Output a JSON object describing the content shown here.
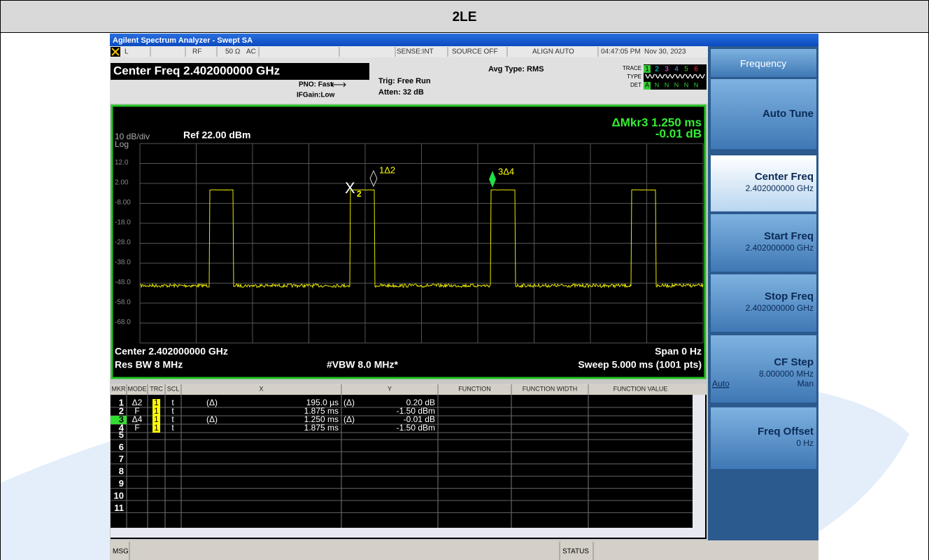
{
  "header": {
    "title": "2LE"
  },
  "window": {
    "title": "Agilent Spectrum Analyzer - Swept SA"
  },
  "status_row": {
    "mode": "L",
    "input": "RF",
    "impedance": "50 Ω",
    "coupling": "AC",
    "sense": "SENSE:INT",
    "source": "SOURCE OFF",
    "align": "ALIGN AUTO",
    "time": "04:47:05 PM",
    "date": "Nov 30, 2023"
  },
  "settings": {
    "center_freq": "Center Freq 2.402000000 GHz",
    "pno": "PNO: Fast",
    "ifgain": "IFGain:Low",
    "trig": "Trig: Free Run",
    "atten": "Atten: 32 dB",
    "avg_type": "Avg Type: RMS",
    "trace_label": "TRACE",
    "trace_nums": [
      "1",
      "2",
      "3",
      "4",
      "5",
      "6"
    ],
    "type_label": "TYPE",
    "type_value": "WWWWWW",
    "det_label": "DET",
    "det_values": [
      "A",
      "N",
      "N",
      "N",
      "N",
      "N"
    ]
  },
  "graph": {
    "marker_readout": "ΔMkr3 1.250 ms",
    "marker_value": "-0.01 dB",
    "scale": "10 dB/div",
    "scale_type": "Log",
    "ref_level": "Ref 22.00 dBm",
    "y_labels": [
      "12.0",
      "2.00",
      "-8.00",
      "-18.0",
      "-28.0",
      "-38.0",
      "-48.0",
      "-58.0",
      "-68.0"
    ],
    "markers": [
      {
        "label": "1Δ2"
      },
      {
        "label": "3Δ4"
      },
      {
        "label": "X"
      },
      {
        "label": "2"
      }
    ],
    "center": "Center 2.402000000 GHz",
    "span": "Span 0 Hz",
    "res_bw": "Res BW 8 MHz",
    "vbw": "#VBW 8.0 MHz*",
    "sweep": "Sweep  5.000 ms (1001 pts)"
  },
  "marker_table": {
    "columns": [
      "MKR",
      "MODE",
      "TRC",
      "SCL",
      "X",
      "Y",
      "FUNCTION",
      "FUNCTION WIDTH",
      "FUNCTION VALUE"
    ],
    "rows": [
      {
        "mkr": "1",
        "mode": "Δ2",
        "trc": "1",
        "scl": "t",
        "x_ref": "(Δ)",
        "x": "195.0 µs",
        "y_ref": "(Δ)",
        "y": "0.20 dB"
      },
      {
        "mkr": "2",
        "mode": "F",
        "trc": "1",
        "scl": "t",
        "x": "1.875 ms",
        "y": "-1.50 dBm"
      },
      {
        "mkr": "3",
        "mode": "Δ4",
        "trc": "1",
        "scl": "t",
        "x_ref": "(Δ)",
        "x": "1.250 ms",
        "y_ref": "(Δ)",
        "y": "-0.01 dB"
      },
      {
        "mkr": "4",
        "mode": "F",
        "trc": "1",
        "scl": "t",
        "x": "1.875 ms",
        "y": "-1.50 dBm"
      },
      {
        "mkr": "5"
      },
      {
        "mkr": "6"
      },
      {
        "mkr": "7"
      },
      {
        "mkr": "8"
      },
      {
        "mkr": "9"
      },
      {
        "mkr": "10"
      },
      {
        "mkr": "11"
      }
    ]
  },
  "softkeys": {
    "menu": "Frequency",
    "keys": [
      {
        "label": "Auto Tune"
      },
      {
        "label": "Center Freq",
        "value": "2.402000000 GHz"
      },
      {
        "label": "Start Freq",
        "value": "2.402000000 GHz"
      },
      {
        "label": "Stop Freq",
        "value": "2.402000000 GHz"
      },
      {
        "label": "CF Step",
        "value": "8.000000 MHz",
        "options": [
          "Auto",
          "Man"
        ]
      },
      {
        "label": "Freq Offset",
        "value": "0 Hz"
      }
    ]
  },
  "status_bar": {
    "msg": "MSG",
    "status": "STATUS"
  }
}
